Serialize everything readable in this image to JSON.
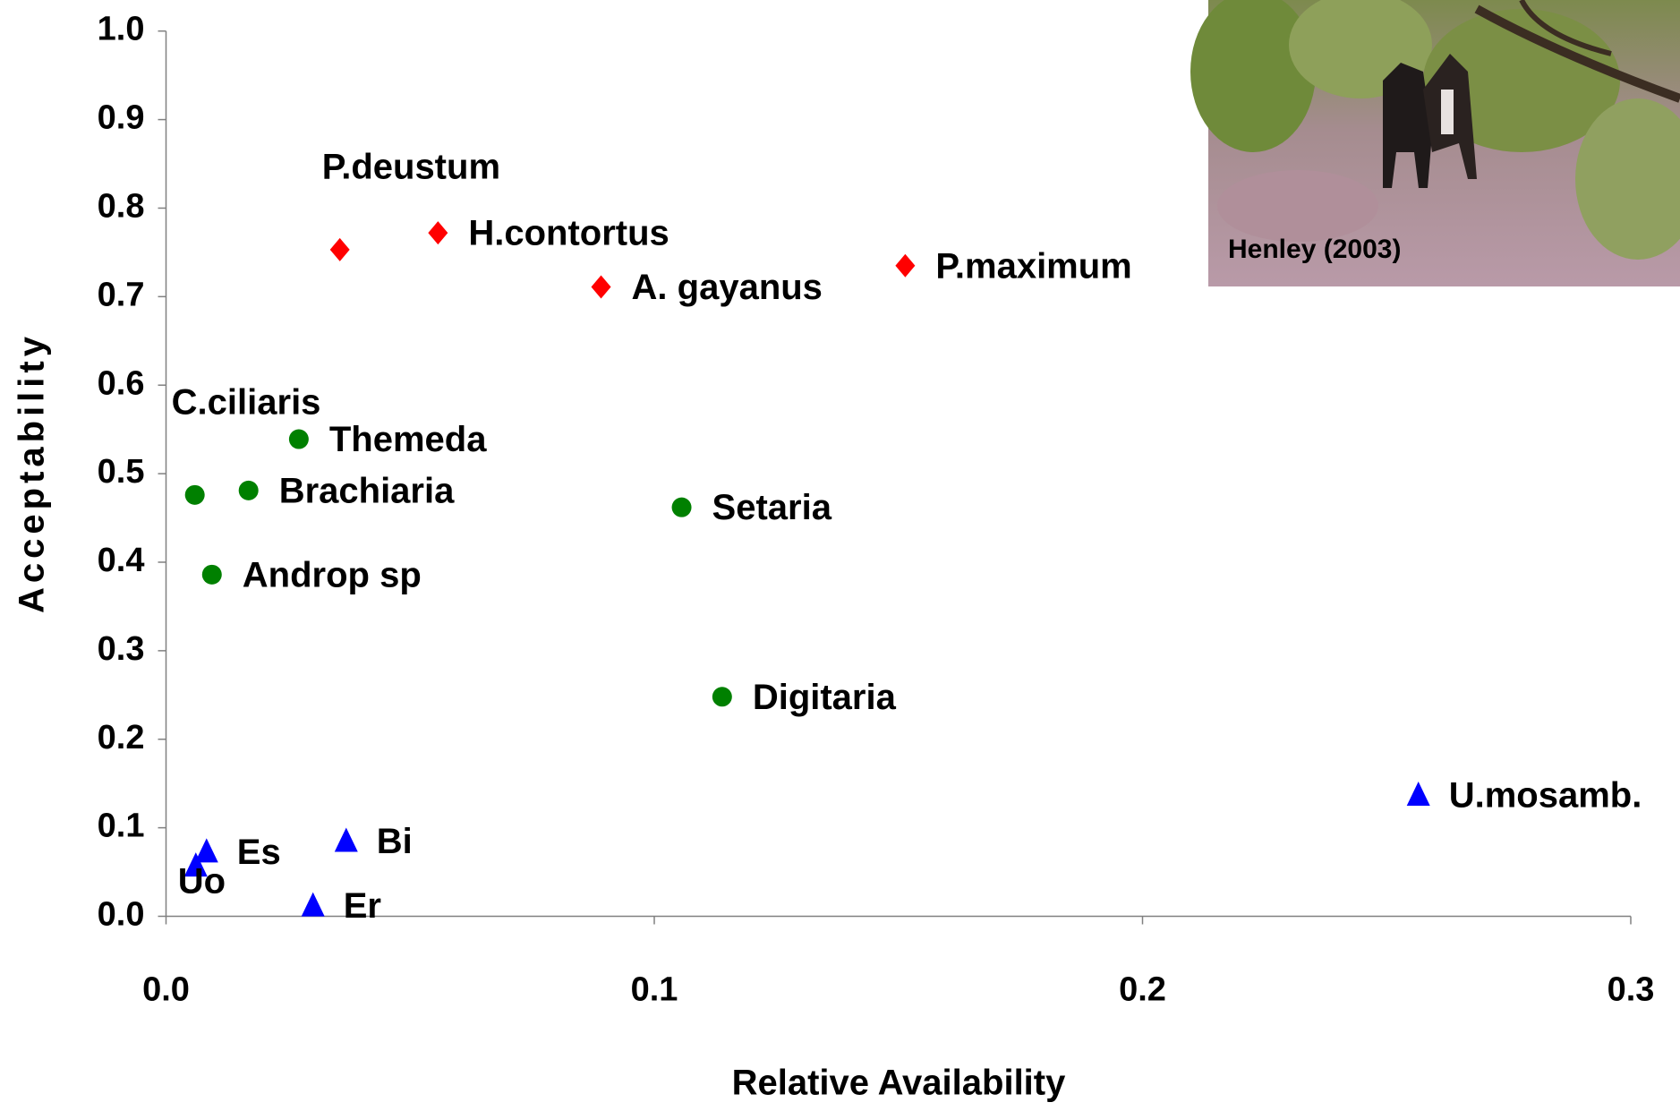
{
  "chart_data": {
    "type": "scatter",
    "x_label": "Relative Availability",
    "y_label": "Acceptability",
    "xlim": [
      0,
      0.3
    ],
    "ylim": [
      0,
      1.0
    ],
    "xticks": [
      {
        "value": 0,
        "label": "0.0"
      },
      0.1,
      0.2,
      0.3
    ],
    "yticks": [
      {
        "value": 0,
        "label": "0.0"
      },
      0.1,
      0.2,
      0.3,
      0.4,
      0.5,
      0.6,
      0.7,
      0.8,
      0.9,
      {
        "value": 1,
        "label": "1.0"
      }
    ],
    "grid": false,
    "series": [
      {
        "marker": "diamond",
        "color": "#ff0000",
        "labels": [
          "P.deustum",
          "H.contortus",
          "A. gayanus",
          "P.maximum"
        ],
        "x": [
          0.0356,
          0.0557,
          0.0891,
          0.1514
        ],
        "values": [
          0.753,
          0.772,
          0.711,
          0.735
        ]
      },
      {
        "marker": "circle",
        "color": "#008000",
        "labels": [
          "C.ciliaris",
          "Brachiaria",
          "Themeda",
          "Androp sp",
          "Setaria",
          "Digitaria"
        ],
        "x": [
          0.0059,
          0.0169,
          0.0272,
          0.0094,
          0.1056,
          0.1139
        ],
        "values": [
          0.476,
          0.481,
          0.539,
          0.386,
          0.462,
          0.248
        ]
      },
      {
        "marker": "triangle",
        "color": "#0000ff",
        "labels": [
          "Uo",
          "Es",
          "Bi",
          "Er",
          "U.mosamb."
        ],
        "x": [
          0.0061,
          0.0083,
          0.0369,
          0.0301,
          0.2565
        ],
        "values": [
          0.057,
          0.073,
          0.085,
          0.012,
          0.137
        ]
      }
    ],
    "inset_caption": "Henley (2003)"
  }
}
